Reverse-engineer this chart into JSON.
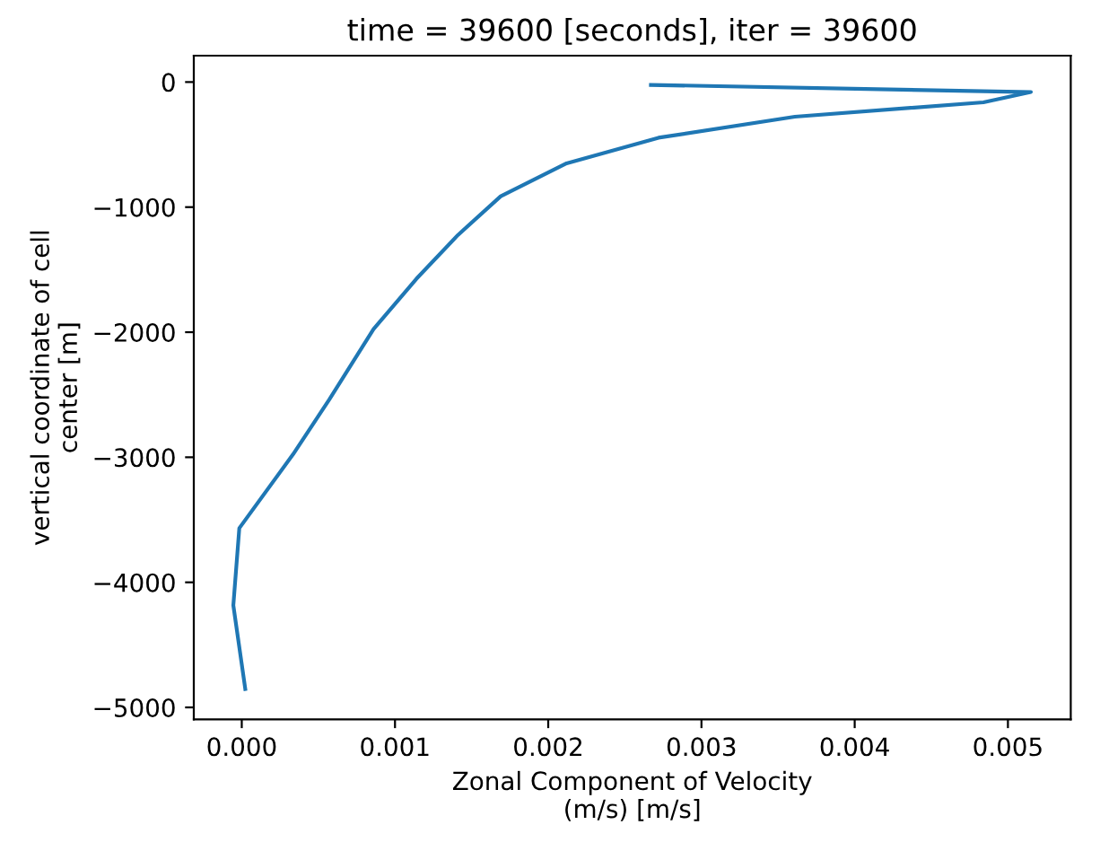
{
  "chart_data": {
    "type": "line",
    "title": "time = 39600 [seconds], iter = 39600",
    "xlabel": "Zonal Component of Velocity\n(m/s) [m/s]",
    "ylabel": "vertical coordinate of cell\ncenter [m]",
    "series": [
      {
        "color": "#1f77b4",
        "x": [
          0.00267,
          0.00515,
          0.00484,
          0.00361,
          0.00272,
          0.00212,
          0.00169,
          0.00141,
          0.00114,
          0.00086,
          0.00057,
          0.000335,
          -1.6e-05,
          -5.5e-05,
          2.3e-05
        ],
        "values": [
          -23,
          -80,
          -162,
          -277,
          -445,
          -650,
          -913,
          -1224,
          -1573,
          -1975,
          -2540,
          -2976,
          -3567,
          -4184,
          -4853
        ]
      }
    ],
    "xlim": [
      -0.000313,
      0.00541
    ],
    "ylim": [
      -5096,
      211
    ],
    "xticks": [
      {
        "value": 0,
        "label": "0.000"
      },
      {
        "value": 0.001,
        "label": "0.001"
      },
      {
        "value": 0.002,
        "label": "0.002"
      },
      {
        "value": 0.003,
        "label": "0.003"
      },
      {
        "value": 0.004,
        "label": "0.004"
      },
      {
        "value": 0.005,
        "label": "0.005"
      }
    ],
    "yticks": [
      {
        "value": -5000,
        "label": "−5000"
      },
      {
        "value": -4000,
        "label": "−4000"
      },
      {
        "value": -3000,
        "label": "−3000"
      },
      {
        "value": -2000,
        "label": "−2000"
      },
      {
        "value": -1000,
        "label": "−1000"
      },
      0
    ]
  }
}
